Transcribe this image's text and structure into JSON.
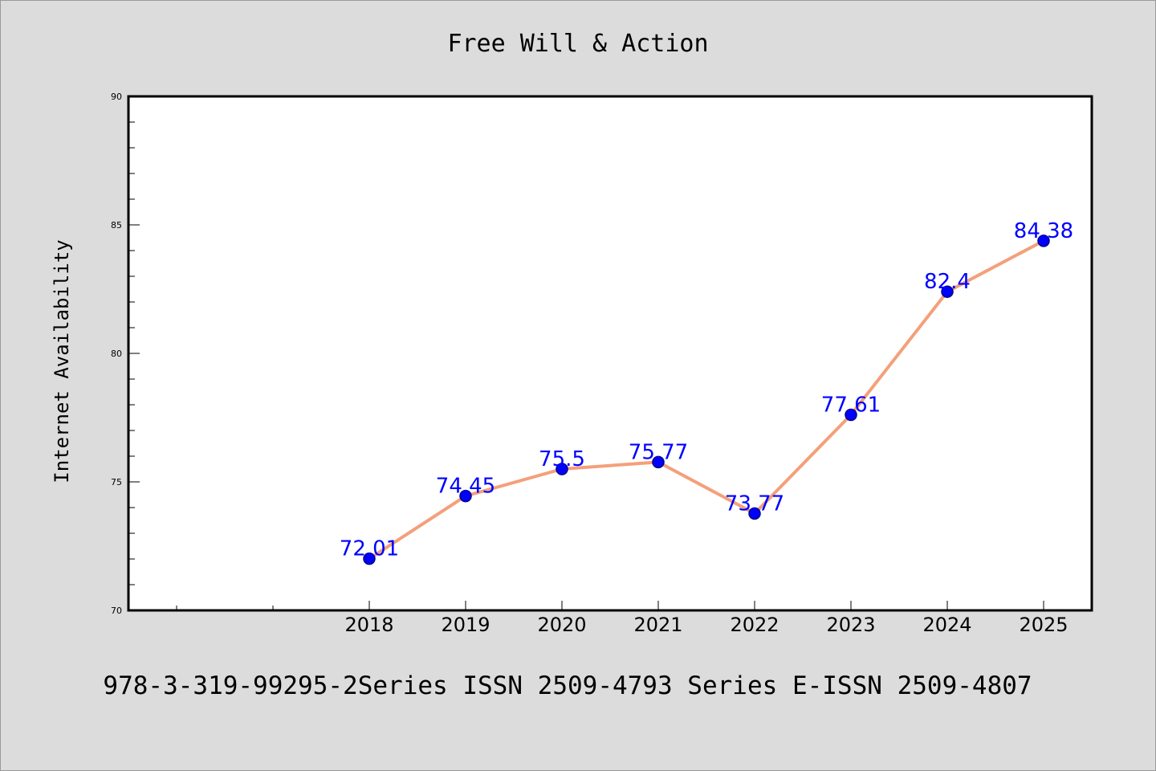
{
  "chart_data": {
    "type": "line",
    "title": "Free Will & Action",
    "xlabel": "",
    "ylabel": "Internet Availability",
    "categories": [
      "2018",
      "2019",
      "2020",
      "2021",
      "2022",
      "2023",
      "2024",
      "2025"
    ],
    "series": [
      {
        "values": [
          72.01,
          74.45,
          75.5,
          75.77,
          73.77,
          77.61,
          82.4,
          84.38
        ],
        "data_labels": [
          "72.01",
          "74.45",
          "75.5",
          "75.77",
          "73.77",
          "77.61",
          "82.4",
          "84.38"
        ]
      }
    ],
    "ylim": [
      70,
      90
    ],
    "yticks": [
      "70",
      "75",
      "80",
      "85",
      "90"
    ],
    "grid": false,
    "legend": "none",
    "colors": {
      "line": "#f4a07a",
      "marker": "#0000ff",
      "marker_edge": "#00008b",
      "data_label": "#0000ff",
      "plot_background": "#ffffff",
      "page_background": "#dcdcdc"
    }
  },
  "footer": {
    "text": "978-3-319-99295-2Series ISSN 2509-4793 Series E-ISSN 2509-4807"
  }
}
